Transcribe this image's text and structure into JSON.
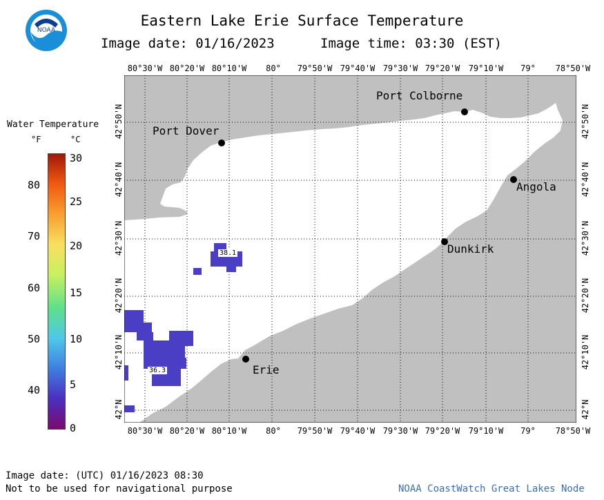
{
  "header": {
    "title": "Eastern Lake Erie Surface Temperature",
    "image_date": "Image date: 01/16/2023",
    "image_time": "Image time: 03:30 (EST)"
  },
  "logo": {
    "text": "NOAA"
  },
  "legend": {
    "title": "Water Temperature",
    "unit_f": "°F",
    "unit_c": "°C",
    "fahrenheit_ticks": [
      "80",
      "70",
      "60",
      "50",
      "40"
    ],
    "celsius_ticks": [
      "30",
      "25",
      "20",
      "15",
      "10",
      "5",
      "0"
    ],
    "colors": [
      "#7a0a6e",
      "#4b2fbf",
      "#3f7fe0",
      "#4fc8e8",
      "#5fe08a",
      "#c8f060",
      "#f8e060",
      "#f8a030",
      "#f05a10",
      "#a01808"
    ]
  },
  "map": {
    "longitude_ticks": [
      "80°30'W",
      "80°20'W",
      "80°10'W",
      "80°",
      "79°50'W",
      "79°40'W",
      "79°30'W",
      "79°20'W",
      "79°10'W",
      "79°",
      "78°50'W"
    ],
    "latitude_ticks": [
      "42°50'N",
      "42°40'N",
      "42°30'N",
      "42°20'N",
      "42°10'N",
      "42°N"
    ],
    "land_color": "#c0c0c0",
    "water_color": "#ffffff",
    "cities": [
      "Port Colborne",
      "Port Dover",
      "Angola",
      "Dunkirk",
      "Erie"
    ],
    "temperature_labels": [
      "38.1",
      "36.3"
    ]
  },
  "footer": {
    "utc_date": "Image date: (UTC) 01/16/2023  08:30",
    "disclaimer": "Not to be used for navigational purpose",
    "credit": "NOAA CoastWatch Great Lakes Node"
  }
}
